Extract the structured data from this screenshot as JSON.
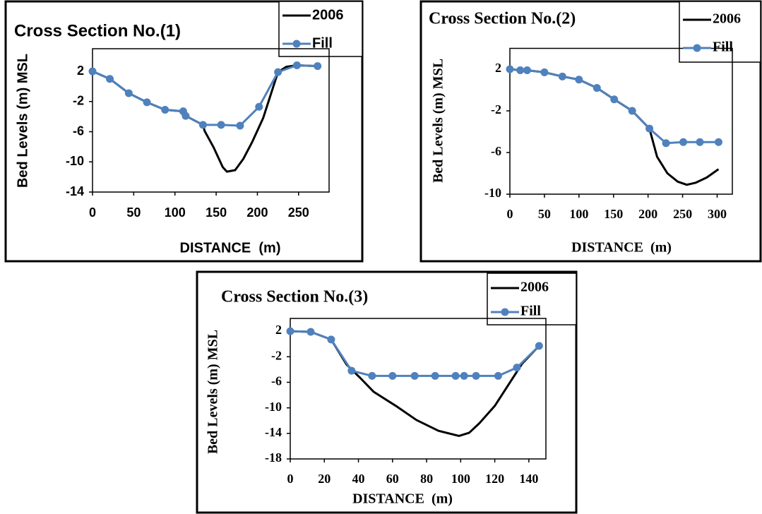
{
  "chart_data": [
    {
      "type": "line",
      "title": "Cross Section No.(1)",
      "x_label": "DISTANCE  (m)",
      "y_label": "Bed Levels (m) MSL",
      "xlim": [
        0,
        287
      ],
      "ylim": [
        -14,
        5
      ],
      "xticks": [
        0,
        50,
        100,
        150,
        200,
        250
      ],
      "yticks": [
        2,
        -2,
        -6,
        -10,
        -14
      ],
      "series": [
        {
          "name": "2006",
          "color": "#000000",
          "markers": false,
          "x": [
            0,
            21,
            44,
            66,
            88,
            110,
            113,
            134,
            136,
            147,
            158,
            163,
            173,
            183,
            194,
            207,
            225,
            235,
            248,
            273
          ],
          "values": [
            2,
            1,
            -0.9,
            -2.1,
            -3.1,
            -3.3,
            -3.9,
            -5.1,
            -5.9,
            -8.1,
            -10.7,
            -11.3,
            -11.1,
            -9.6,
            -7.3,
            -4.2,
            1.9,
            2.6,
            2.8,
            2.7
          ]
        },
        {
          "name": "Fill",
          "color": "#4f81bd",
          "markers": true,
          "x": [
            0,
            21,
            44,
            66,
            88,
            110,
            113,
            134,
            156,
            179,
            202,
            225,
            248,
            273
          ],
          "values": [
            2,
            1,
            -0.9,
            -2.1,
            -3.1,
            -3.3,
            -3.9,
            -5.1,
            -5.1,
            -5.2,
            -2.7,
            1.9,
            2.8,
            2.7
          ]
        }
      ]
    },
    {
      "type": "line",
      "title": "Cross Section No.(2)",
      "x_label": "DISTANCE  (m)",
      "y_label": "Bed Levels (m) MSL",
      "xlim": [
        0,
        322
      ],
      "ylim": [
        -10,
        4
      ],
      "xticks": [
        0,
        50,
        100,
        150,
        200,
        250,
        300
      ],
      "yticks": [
        2,
        -2,
        -6,
        -10
      ],
      "series": [
        {
          "name": "2006",
          "color": "#000000",
          "markers": false,
          "x": [
            0,
            15,
            25,
            50,
            76,
            100,
            126,
            151,
            177,
            202,
            213,
            228,
            243,
            256,
            269,
            285,
            302
          ],
          "values": [
            2,
            1.9,
            1.9,
            1.7,
            1.3,
            1,
            0.2,
            -0.9,
            -2,
            -3.7,
            -6.4,
            -8,
            -8.8,
            -9.1,
            -8.9,
            -8.4,
            -7.6
          ]
        },
        {
          "name": "Fill",
          "color": "#4f81bd",
          "markers": true,
          "x": [
            0,
            15,
            25,
            50,
            76,
            100,
            126,
            151,
            177,
            202,
            226,
            251,
            275,
            302
          ],
          "values": [
            2,
            1.9,
            1.9,
            1.7,
            1.3,
            1,
            0.2,
            -0.9,
            -2,
            -3.7,
            -5.1,
            -5,
            -5,
            -5
          ]
        }
      ]
    },
    {
      "type": "line",
      "title": "Cross Section No.(3)",
      "x_label": "DISTANCE  (m)",
      "y_label": "Bed Levels (m) MSL",
      "xlim": [
        0,
        150
      ],
      "ylim": [
        -18,
        4
      ],
      "xticks": [
        0,
        20,
        40,
        60,
        80,
        100,
        120,
        140
      ],
      "yticks": [
        2,
        -2,
        -6,
        -10,
        -14,
        -18
      ],
      "series": [
        {
          "name": "2006",
          "color": "#000000",
          "markers": false,
          "x": [
            0,
            12,
            24,
            33,
            41,
            49,
            62,
            74,
            87,
            99,
            105,
            111,
            120,
            128,
            136,
            146
          ],
          "values": [
            2,
            1.9,
            0.7,
            -3.2,
            -5.3,
            -7.5,
            -9.7,
            -11.9,
            -13.6,
            -14.4,
            -13.9,
            -12.4,
            -9.7,
            -6.4,
            -3.1,
            -0.3
          ]
        },
        {
          "name": "Fill",
          "color": "#4f81bd",
          "markers": true,
          "x": [
            0,
            12,
            24,
            36,
            48,
            60,
            73,
            85,
            97,
            102,
            109,
            122,
            133,
            146
          ],
          "values": [
            2,
            1.9,
            0.7,
            -4.2,
            -5,
            -5,
            -5,
            -5,
            -5,
            -5,
            -5,
            -5,
            -3.7,
            -0.3
          ]
        }
      ]
    }
  ]
}
